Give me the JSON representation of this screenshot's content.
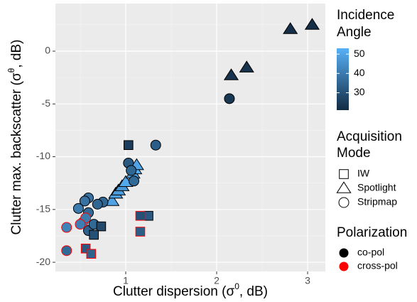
{
  "chart_data": {
    "type": "scatter",
    "x_label": {
      "before": "Clutter dispersion (σ",
      "sup": "0",
      "after": ", dB)"
    },
    "y_label": {
      "before": "Clutter max. backscatter (σ",
      "sup": "θ",
      "after": ", dB)"
    },
    "xlim": [
      0.227,
      3.195
    ],
    "ylim": [
      -20.87,
      4.51
    ],
    "xticks": [
      1,
      2,
      3
    ],
    "yticks": [
      -20,
      -15,
      -10,
      -5,
      0
    ],
    "minor_xticks": [
      0.5,
      1.5,
      2.5
    ],
    "minor_yticks": [
      -17.5,
      -12.5,
      -7.5,
      -2.5,
      2.5
    ],
    "grid": true,
    "x": [
      3.05,
      2.81,
      2.33,
      2.16,
      0.85,
      0.89,
      0.92,
      0.96,
      1.0,
      1.08,
      1.1,
      1.12,
      2.14,
      1.33,
      1.03,
      1.06,
      1.09,
      0.75,
      0.69,
      0.59,
      0.55,
      0.48,
      0.59,
      0.59,
      0.65,
      0.35,
      0.53,
      0.56,
      0.5,
      0.35,
      1.03,
      1.25,
      0.73,
      0.65,
      1.16,
      1.16,
      0.56,
      0.62
    ],
    "y": [
      2.49,
      2.09,
      -1.55,
      -2.29,
      -14.2,
      -13.5,
      -13.2,
      -12.8,
      -12.4,
      -11.6,
      -11.2,
      -10.8,
      -4.5,
      -8.9,
      -10.6,
      -11.3,
      -12.3,
      -14.3,
      -14.5,
      -13.9,
      -14.2,
      -14.9,
      -15.3,
      -17.0,
      -16.4,
      -16.7,
      -16.2,
      -15.8,
      -16.4,
      -18.9,
      -8.9,
      -15.6,
      -16.6,
      -17.4,
      -15.6,
      -17.1,
      -18.7,
      -19.2
    ],
    "angle": [
      22,
      22,
      23,
      23,
      50,
      49,
      48,
      47,
      51,
      48,
      52,
      50,
      24,
      33,
      32,
      35,
      36,
      35,
      35,
      38,
      38,
      40,
      36,
      34,
      36,
      42,
      40,
      40,
      41,
      36,
      25,
      32,
      28,
      30,
      30,
      33,
      32,
      34
    ],
    "mode": [
      1,
      1,
      1,
      1,
      1,
      1,
      1,
      1,
      1,
      1,
      1,
      1,
      2,
      2,
      2,
      2,
      2,
      2,
      2,
      2,
      2,
      2,
      2,
      2,
      2,
      2,
      2,
      2,
      2,
      2,
      0,
      0,
      0,
      0,
      0,
      0,
      0,
      0
    ],
    "polarization": [
      0,
      0,
      0,
      0,
      0,
      0,
      0,
      0,
      0,
      0,
      0,
      0,
      0,
      0,
      0,
      0,
      0,
      0,
      0,
      0,
      0,
      0,
      0,
      0,
      0,
      1,
      1,
      1,
      1,
      1,
      0,
      0,
      0,
      0,
      1,
      1,
      1,
      1
    ],
    "color_legend": {
      "title": [
        "Incidence",
        "Angle"
      ],
      "lim": [
        21,
        53
      ],
      "ticks": [
        30,
        40,
        50
      ],
      "color_low": "#132B43",
      "color_high": "#56B1F7"
    },
    "mode_legend": {
      "title": [
        "Acquisition",
        "Mode"
      ],
      "labels": [
        "IW",
        "Spotlight",
        "Stripmap"
      ],
      "shapes": [
        "square",
        "triangle",
        "circle"
      ]
    },
    "polarization_legend": {
      "title": "Polarization",
      "labels": [
        "co-pol",
        "cross-pol"
      ],
      "colors": [
        "#000000",
        "#FF0000"
      ]
    }
  }
}
